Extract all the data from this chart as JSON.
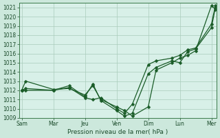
{
  "background_color": "#cce8dc",
  "plot_bg_color": "#d8f0e8",
  "grid_color": "#aaccbb",
  "line_color": "#1a5c28",
  "marker_color": "#1a5c28",
  "title": "Pression niveau de la mer( hPa )",
  "ylim": [
    1009,
    1021.5
  ],
  "yticks": [
    1009,
    1010,
    1011,
    1012,
    1013,
    1014,
    1015,
    1016,
    1017,
    1018,
    1019,
    1020,
    1021
  ],
  "day_positions": [
    0,
    24,
    48,
    72,
    96,
    120,
    144
  ],
  "day_labels": [
    "Sam",
    "Mar",
    "Jeu",
    "Ven",
    "Dim",
    "Lun",
    "Mer"
  ],
  "xlim": [
    -2,
    148
  ],
  "series1_x": [
    0,
    3,
    24,
    36,
    48,
    54,
    60,
    72,
    78,
    84,
    96,
    102,
    114,
    120,
    126,
    132,
    144,
    147
  ],
  "series1_y": [
    1012.0,
    1013.0,
    1012.1,
    1012.2,
    1011.5,
    1012.5,
    1011.0,
    1010.2,
    1009.8,
    1009.2,
    1010.2,
    1014.2,
    1015.0,
    1015.5,
    1015.8,
    1016.3,
    1021.2,
    1020.8
  ],
  "series2_x": [
    0,
    3,
    24,
    36,
    48,
    54,
    60,
    72,
    78,
    84,
    96,
    102,
    114,
    120,
    126,
    132,
    144,
    147
  ],
  "series2_y": [
    1012.0,
    1012.2,
    1012.0,
    1012.3,
    1011.2,
    1011.0,
    1011.2,
    1010.0,
    1009.5,
    1010.5,
    1014.8,
    1015.2,
    1015.5,
    1015.8,
    1016.4,
    1016.6,
    1019.2,
    1021.2
  ],
  "series3_x": [
    0,
    3,
    24,
    36,
    48,
    54,
    60,
    72,
    78,
    84,
    96,
    102,
    114,
    120,
    126,
    132,
    144,
    147
  ],
  "series3_y": [
    1012.0,
    1012.0,
    1012.0,
    1012.5,
    1011.3,
    1012.7,
    1010.9,
    1009.8,
    1009.2,
    1009.5,
    1013.8,
    1014.5,
    1015.2,
    1015.0,
    1016.2,
    1016.5,
    1018.8,
    1021.0
  ],
  "marker_size": 2.5,
  "linewidth": 0.9
}
